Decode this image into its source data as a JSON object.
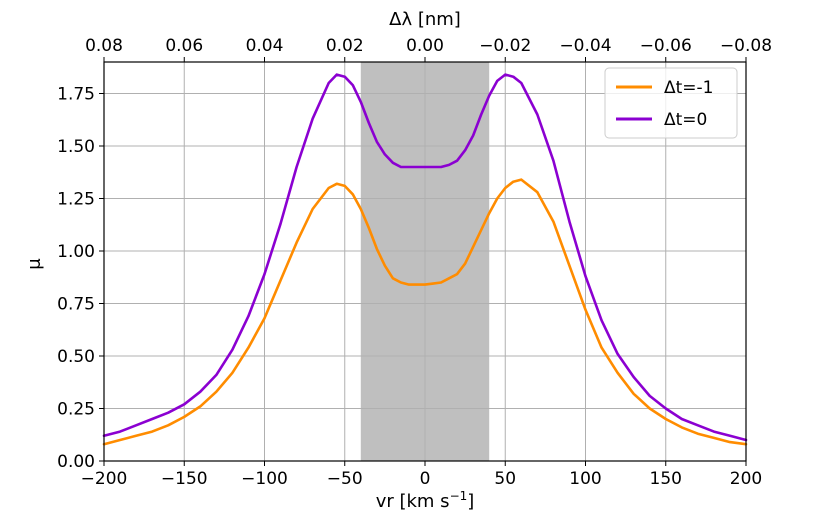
{
  "chart_data": {
    "type": "line",
    "title": "",
    "xlabel": "vr [km s",
    "xlabel_sup": "−1",
    "xlabel_close": "]",
    "ylabel": "μ",
    "top_xlabel": "Δλ [nm]",
    "xlim": [
      -200,
      200
    ],
    "ylim": [
      0,
      1.9
    ],
    "grid": true,
    "legend_position": "top-right",
    "x_ticks": [
      -200,
      -150,
      -100,
      -50,
      0,
      50,
      100,
      150,
      200
    ],
    "x_tick_labels": [
      "−200",
      "−150",
      "−100",
      "−50",
      "0",
      "50",
      "100",
      "150",
      "200"
    ],
    "y_ticks": [
      0,
      0.25,
      0.5,
      0.75,
      1.0,
      1.25,
      1.5,
      1.75
    ],
    "y_tick_labels": [
      "0.00",
      "0.25",
      "0.50",
      "0.75",
      "1.00",
      "1.25",
      "1.50",
      "1.75"
    ],
    "top_ticks_vr": [
      -200,
      -150,
      -100,
      -50,
      0,
      50,
      100,
      150,
      200
    ],
    "top_tick_labels": [
      "0.08",
      "0.06",
      "0.04",
      "0.02",
      "0.00",
      "−0.02",
      "−0.04",
      "−0.06",
      "−0.08"
    ],
    "shaded_region": {
      "x_from": -40,
      "x_to": 40,
      "color": "#bfbfbf"
    },
    "x": [
      -200,
      -190,
      -180,
      -170,
      -160,
      -150,
      -140,
      -130,
      -120,
      -110,
      -100,
      -90,
      -80,
      -70,
      -60,
      -55,
      -50,
      -45,
      -40,
      -35,
      -30,
      -25,
      -20,
      -15,
      -10,
      -5,
      0,
      5,
      10,
      15,
      20,
      25,
      30,
      35,
      40,
      45,
      50,
      55,
      60,
      70,
      80,
      90,
      100,
      110,
      120,
      130,
      140,
      150,
      160,
      170,
      180,
      190,
      200
    ],
    "series": [
      {
        "name": "Δt=-1",
        "color": "#ff8c00",
        "values": [
          0.08,
          0.1,
          0.12,
          0.14,
          0.17,
          0.21,
          0.26,
          0.33,
          0.42,
          0.54,
          0.68,
          0.86,
          1.04,
          1.2,
          1.3,
          1.32,
          1.31,
          1.27,
          1.2,
          1.11,
          1.01,
          0.93,
          0.87,
          0.85,
          0.84,
          0.84,
          0.84,
          0.845,
          0.85,
          0.87,
          0.89,
          0.94,
          1.02,
          1.1,
          1.18,
          1.25,
          1.3,
          1.33,
          1.34,
          1.28,
          1.14,
          0.93,
          0.72,
          0.54,
          0.42,
          0.32,
          0.25,
          0.2,
          0.16,
          0.13,
          0.11,
          0.09,
          0.08
        ]
      },
      {
        "name": "Δt=0",
        "color": "#8b00d1",
        "values": [
          0.12,
          0.14,
          0.17,
          0.2,
          0.23,
          0.27,
          0.33,
          0.41,
          0.53,
          0.69,
          0.89,
          1.13,
          1.4,
          1.63,
          1.8,
          1.84,
          1.83,
          1.79,
          1.71,
          1.61,
          1.52,
          1.46,
          1.42,
          1.4,
          1.4,
          1.4,
          1.4,
          1.4,
          1.4,
          1.41,
          1.43,
          1.48,
          1.55,
          1.65,
          1.74,
          1.81,
          1.84,
          1.83,
          1.8,
          1.65,
          1.43,
          1.14,
          0.88,
          0.67,
          0.51,
          0.4,
          0.31,
          0.25,
          0.2,
          0.17,
          0.14,
          0.12,
          0.1
        ]
      }
    ]
  }
}
